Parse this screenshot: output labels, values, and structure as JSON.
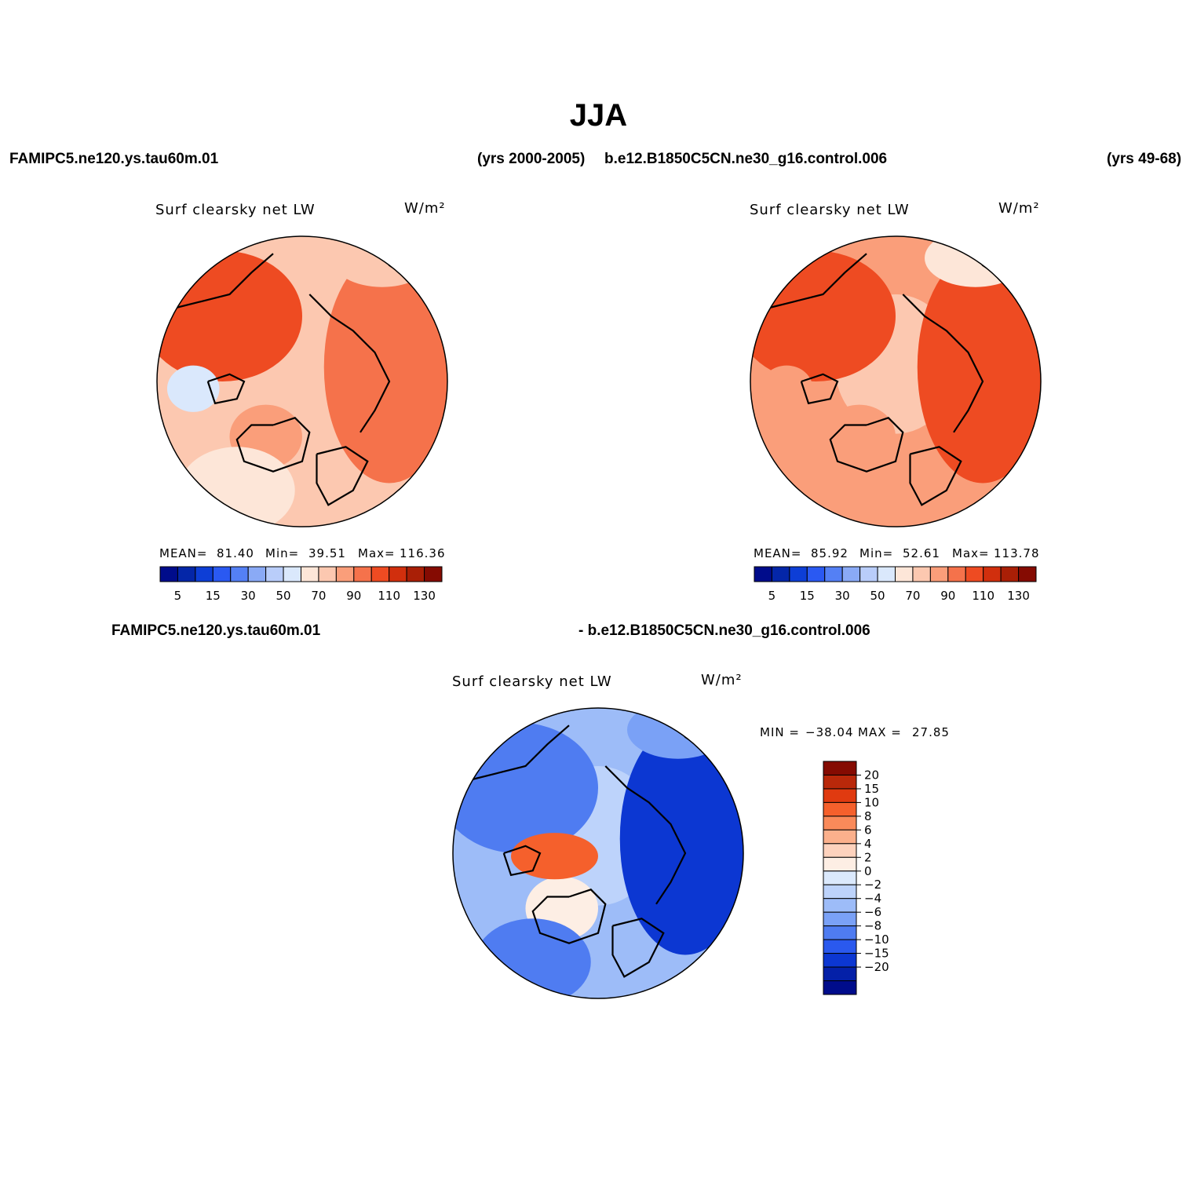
{
  "season": "JJA",
  "header": {
    "case_test": "FAMIPC5.ne120.ys.tau60m.01",
    "years_test": "(yrs 2000-2005)",
    "case_control": "b.e12.B1850C5CN.ne30_g16.control.006",
    "years_control": "(yrs 49-68)"
  },
  "panels": [
    {
      "variable": "Surf clearsky net LW",
      "units": "W/m²",
      "stats": {
        "mean_label": "MEAN=",
        "mean": "81.40",
        "min_label": "Min=",
        "min": "39.51",
        "max_label": "Max=",
        "max": "116.36"
      },
      "regional_values": {
        "arctic_ocean": 70,
        "eurasia_east": 95,
        "north_america": 100,
        "greenland": 80,
        "hudson_bay": 55,
        "north_atlantic": 65,
        "north_pacific": 70
      }
    },
    {
      "variable": "Surf clearsky net LW",
      "units": "W/m²",
      "stats": {
        "mean_label": "MEAN=",
        "mean": "85.92",
        "min_label": "Min=",
        "min": "52.61",
        "max_label": "Max=",
        "max": "113.78"
      },
      "regional_values": {
        "arctic_ocean": 70,
        "eurasia_east": 105,
        "north_america": 105,
        "greenland": 80,
        "hudson_bay": 80,
        "north_atlantic": 80,
        "north_pacific": 65
      }
    }
  ],
  "abs_colorbar": {
    "colors": [
      "#000c8b",
      "#0426a8",
      "#0d3ed6",
      "#2a59f2",
      "#5480f5",
      "#8aaaf6",
      "#b9cdfa",
      "#dae8fc",
      "#fde6d8",
      "#fcc8b0",
      "#fa9e7a",
      "#f5724b",
      "#ee4b22",
      "#d12f0d",
      "#a91f06",
      "#850b02"
    ],
    "labels": [
      "5",
      "15",
      "30",
      "50",
      "70",
      "90",
      "110",
      "130"
    ]
  },
  "difference": {
    "title_left": "FAMIPC5.ne120.ys.tau60m.01",
    "title_right": "- b.e12.B1850C5CN.ne30_g16.control.006",
    "variable": "Surf clearsky net LW",
    "units": "W/m²",
    "min_label": "MIN =",
    "min": "−38.04",
    "max_label": "MAX =",
    "max": "27.85",
    "regional_values": {
      "arctic_ocean": -2,
      "eurasia_east": -15,
      "north_america": -8,
      "greenland": 2,
      "canadian_archipelago": 10,
      "north_atlantic": -8,
      "north_pacific": -6
    },
    "colorbar": {
      "colors": [
        "#850b02",
        "#b9280a",
        "#e03a10",
        "#f5602c",
        "#f98a5a",
        "#fbb08c",
        "#fdd2bd",
        "#fdeee4",
        "#dbe9fc",
        "#bdd3fb",
        "#9dbcf8",
        "#7aa1f6",
        "#4f7cf1",
        "#2a59ee",
        "#0c37d2",
        "#0420a8",
        "#000c8b"
      ],
      "labels": [
        "20",
        "15",
        "10",
        "8",
        "6",
        "4",
        "2",
        "0",
        "−2",
        "−4",
        "−6",
        "−8",
        "−10",
        "−15",
        "−20"
      ]
    }
  }
}
